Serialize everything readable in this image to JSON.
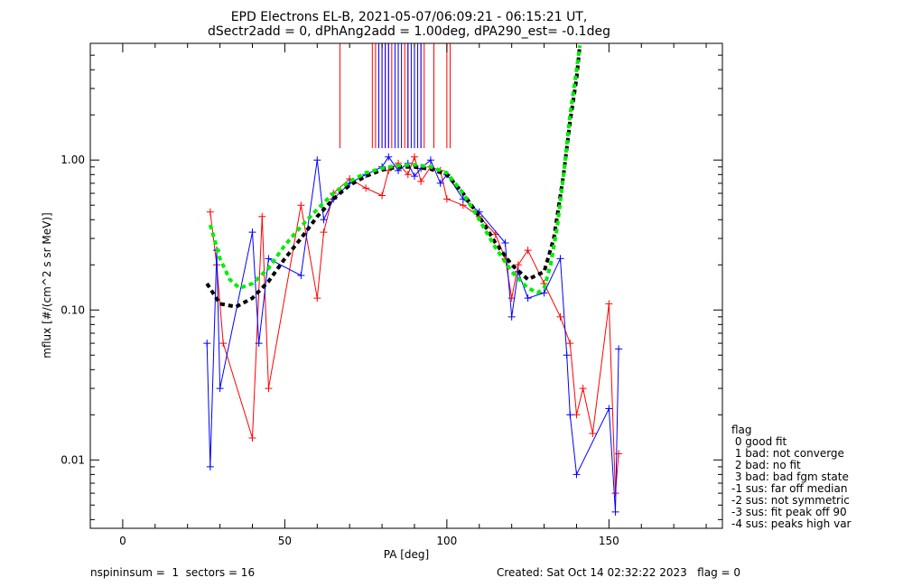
{
  "chart_data": {
    "type": "scatter",
    "title": "EPD Electrons EL-B, 2021-05-07/06:09:21 - 06:15:21 UT,",
    "subtitle": "dSectr2add = 0, dPhAng2add = 1.00deg, dPA290_est=  -0.1deg",
    "xlabel": "PA [deg]",
    "ylabel": "mflux [#/(cm^2 s sr MeV)]",
    "xlim": [
      -10,
      185
    ],
    "ylim": [
      0.0035,
      6.0
    ],
    "yscale": "log",
    "xticks": [
      0,
      50,
      100,
      150
    ],
    "yticks": [
      0.01,
      0.1,
      1.0
    ],
    "ytick_labels": [
      "0.01",
      "0.10",
      "1.00"
    ],
    "grid": false,
    "series": [
      {
        "color": "#ff0000",
        "style": "thin lines with plus markers",
        "x": [
          27,
          29,
          31,
          40,
          43,
          45,
          55,
          60,
          62,
          65,
          70,
          75,
          80,
          82,
          85,
          88,
          90,
          92,
          95,
          98,
          100,
          105,
          110,
          115,
          118,
          120,
          122,
          125,
          130,
          135,
          138,
          140,
          142,
          145,
          150,
          152,
          153
        ],
        "y": [
          0.45,
          0.2,
          0.06,
          0.014,
          0.42,
          0.03,
          0.5,
          0.12,
          0.33,
          0.6,
          0.75,
          0.65,
          0.58,
          0.85,
          0.95,
          0.8,
          1.05,
          0.72,
          0.9,
          0.85,
          0.55,
          0.5,
          0.42,
          0.32,
          0.22,
          0.12,
          0.2,
          0.25,
          0.15,
          0.09,
          0.06,
          0.02,
          0.03,
          0.015,
          0.11,
          0.006,
          0.011
        ]
      },
      {
        "color": "#0000ff",
        "style": "thin lines with plus markers",
        "x": [
          26,
          27,
          29,
          30,
          40,
          42,
          45,
          55,
          60,
          62,
          65,
          70,
          75,
          80,
          82,
          85,
          88,
          90,
          92,
          95,
          98,
          100,
          105,
          110,
          118,
          120,
          122,
          125,
          130,
          135,
          137,
          138,
          140,
          150,
          152,
          153
        ],
        "y": [
          0.06,
          0.009,
          0.25,
          0.03,
          0.33,
          0.06,
          0.22,
          0.17,
          1.0,
          0.4,
          0.55,
          0.7,
          0.8,
          0.9,
          1.05,
          0.85,
          0.95,
          0.78,
          0.88,
          1.0,
          0.7,
          0.8,
          0.55,
          0.45,
          0.28,
          0.09,
          0.18,
          0.12,
          0.13,
          0.22,
          0.05,
          0.02,
          0.008,
          0.022,
          0.0045,
          0.055
        ]
      },
      {
        "color": "#000000",
        "style": "thick dashed fit",
        "x": [
          26,
          30,
          35,
          40,
          45,
          50,
          55,
          60,
          65,
          70,
          75,
          80,
          85,
          90,
          95,
          100,
          105,
          110,
          115,
          120,
          125,
          130,
          133,
          136,
          138,
          140,
          141
        ],
        "y": [
          0.15,
          0.11,
          0.105,
          0.12,
          0.155,
          0.22,
          0.3,
          0.42,
          0.55,
          0.68,
          0.78,
          0.86,
          0.9,
          0.9,
          0.87,
          0.8,
          0.6,
          0.42,
          0.28,
          0.2,
          0.16,
          0.18,
          0.3,
          0.8,
          1.8,
          3.5,
          5.8
        ]
      },
      {
        "color": "#00ee00",
        "style": "thick dashed fit",
        "x": [
          27,
          30,
          33,
          36,
          40,
          45,
          50,
          55,
          60,
          65,
          70,
          75,
          80,
          85,
          90,
          95,
          100,
          105,
          110,
          115,
          120,
          125,
          128,
          130,
          132,
          134,
          136,
          138,
          140,
          141
        ],
        "y": [
          0.37,
          0.22,
          0.16,
          0.14,
          0.15,
          0.19,
          0.27,
          0.36,
          0.47,
          0.6,
          0.72,
          0.82,
          0.88,
          0.92,
          0.93,
          0.9,
          0.82,
          0.6,
          0.4,
          0.26,
          0.18,
          0.14,
          0.13,
          0.14,
          0.2,
          0.35,
          0.8,
          2.0,
          4.0,
          5.8
        ]
      }
    ],
    "vertical_lines": {
      "y_bottom": 1.2,
      "y_top": 6.0,
      "red_x": [
        67,
        77,
        78,
        80,
        81,
        82,
        83,
        85,
        87,
        88,
        90,
        92,
        93,
        96,
        100,
        101
      ],
      "blue_x": [
        79,
        80,
        81,
        82,
        84,
        85,
        86,
        88,
        89,
        90,
        91,
        92
      ]
    }
  },
  "legend": {
    "title": "flag",
    "entries": [
      " 0 good fit",
      " 1 bad: not converge",
      " 2 bad: no fit",
      " 3 bad: bad fgm state",
      "-1 sus: far off median",
      "-2 sus: not symmetric",
      "-3 sus: fit peak off 90",
      "-4 sus: peaks high var"
    ]
  },
  "footer": {
    "left": "nspininsum =  1  sectors = 16",
    "right": "Created: Sat Oct 14 02:32:22 2023   flag = 0"
  }
}
